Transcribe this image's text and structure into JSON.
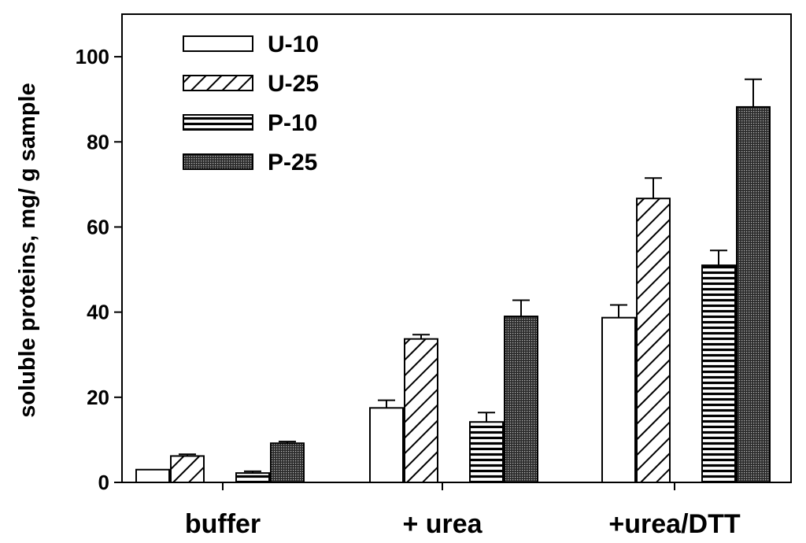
{
  "chart_data": {
    "type": "bar",
    "title": "",
    "xlabel": "",
    "ylabel": "soluble proteins, mg/ g sample",
    "ylim": [
      0,
      110
    ],
    "yticks": [
      0,
      20,
      40,
      60,
      80,
      100
    ],
    "grid": false,
    "legend_position": "top-left",
    "categories": [
      "buffer",
      "+ urea",
      "+urea/DTT"
    ],
    "series": [
      {
        "name": "U-10",
        "pattern": "empty",
        "values": [
          3.0,
          17.5,
          38.7
        ],
        "errors": [
          0,
          1.8,
          3.0
        ]
      },
      {
        "name": "U-25",
        "pattern": "diagonal",
        "values": [
          6.2,
          33.7,
          66.7
        ],
        "errors": [
          0.4,
          1.0,
          4.8
        ]
      },
      {
        "name": "P-10",
        "pattern": "horizontal",
        "values": [
          2.2,
          14.2,
          51.0
        ],
        "errors": [
          0.4,
          2.2,
          3.5
        ]
      },
      {
        "name": "P-25",
        "pattern": "dotted",
        "values": [
          9.2,
          39.0,
          88.2
        ],
        "errors": [
          0.4,
          3.8,
          6.5
        ]
      }
    ]
  }
}
